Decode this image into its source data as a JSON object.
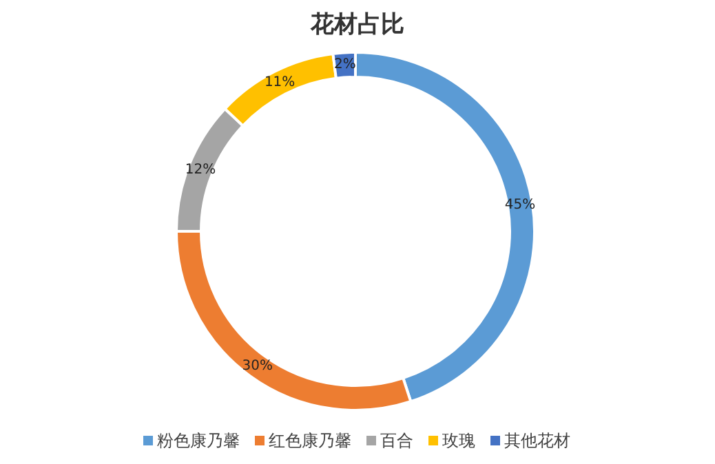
{
  "chart_data": {
    "type": "donut",
    "title": "花材占比",
    "categories": [
      "粉色康乃馨",
      "红色康乃馨",
      "百合",
      "玫瑰",
      "其他花材"
    ],
    "values": [
      45,
      30,
      12,
      11,
      2
    ],
    "colors": [
      "#5b9bd5",
      "#ed7d31",
      "#a5a5a5",
      "#ffc000",
      "#4472c4"
    ],
    "value_labels": [
      "45%",
      "30%",
      "12%",
      "11%",
      "2%"
    ],
    "legend": "bottom"
  }
}
